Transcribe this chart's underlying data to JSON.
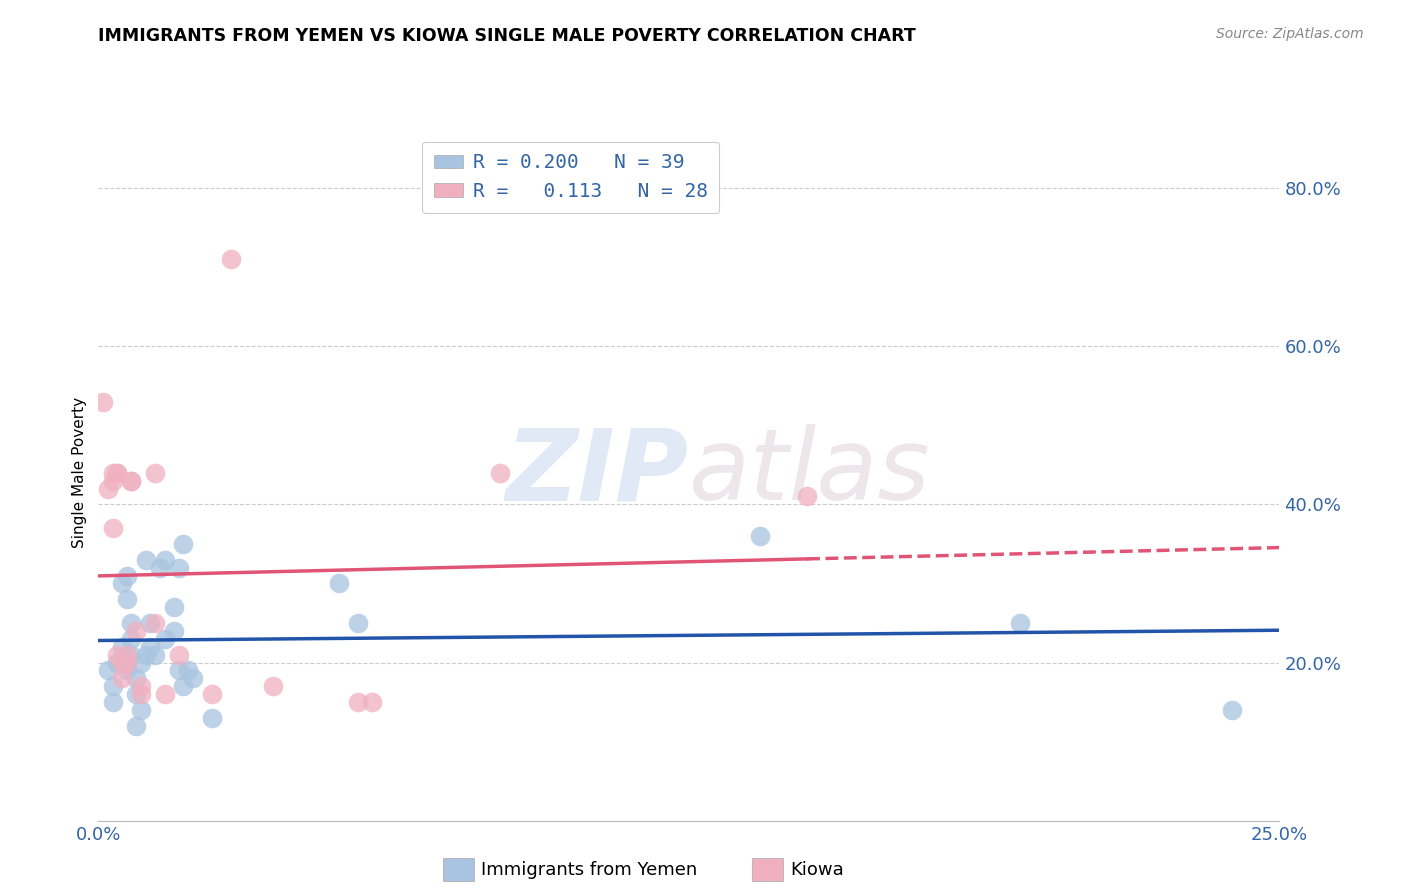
{
  "title": "IMMIGRANTS FROM YEMEN VS KIOWA SINGLE MALE POVERTY CORRELATION CHART",
  "source": "Source: ZipAtlas.com",
  "xlabel_blue": "Immigrants from Yemen",
  "xlabel_pink": "Kiowa",
  "ylabel": "Single Male Poverty",
  "xlim": [
    0.0,
    0.25
  ],
  "ylim": [
    0.0,
    0.88
  ],
  "xticks": [
    0.0,
    0.05,
    0.1,
    0.15,
    0.2,
    0.25
  ],
  "xtick_labels": [
    "0.0%",
    "",
    "",
    "",
    "",
    "25.0%"
  ],
  "yticks_right": [
    0.2,
    0.4,
    0.6,
    0.8
  ],
  "ytick_labels_right": [
    "20.0%",
    "40.0%",
    "60.0%",
    "80.0%"
  ],
  "legend_blue_r": "0.200",
  "legend_blue_n": "39",
  "legend_pink_r": "0.113",
  "legend_pink_n": "28",
  "blue_color": "#a8c4e0",
  "pink_color": "#f0b0c0",
  "blue_line_color": "#2255aa",
  "pink_line_color": "#e05575",
  "blue_scatter": [
    [
      0.002,
      0.19
    ],
    [
      0.003,
      0.17
    ],
    [
      0.003,
      0.15
    ],
    [
      0.004,
      0.2
    ],
    [
      0.005,
      0.22
    ],
    [
      0.005,
      0.3
    ],
    [
      0.006,
      0.31
    ],
    [
      0.006,
      0.28
    ],
    [
      0.006,
      0.19
    ],
    [
      0.007,
      0.23
    ],
    [
      0.007,
      0.25
    ],
    [
      0.007,
      0.21
    ],
    [
      0.008,
      0.18
    ],
    [
      0.008,
      0.16
    ],
    [
      0.008,
      0.12
    ],
    [
      0.009,
      0.14
    ],
    [
      0.009,
      0.2
    ],
    [
      0.01,
      0.33
    ],
    [
      0.01,
      0.21
    ],
    [
      0.011,
      0.22
    ],
    [
      0.011,
      0.25
    ],
    [
      0.012,
      0.21
    ],
    [
      0.013,
      0.32
    ],
    [
      0.014,
      0.33
    ],
    [
      0.014,
      0.23
    ],
    [
      0.016,
      0.27
    ],
    [
      0.016,
      0.24
    ],
    [
      0.017,
      0.32
    ],
    [
      0.017,
      0.19
    ],
    [
      0.018,
      0.17
    ],
    [
      0.018,
      0.35
    ],
    [
      0.019,
      0.19
    ],
    [
      0.02,
      0.18
    ],
    [
      0.024,
      0.13
    ],
    [
      0.051,
      0.3
    ],
    [
      0.055,
      0.25
    ],
    [
      0.14,
      0.36
    ],
    [
      0.195,
      0.25
    ],
    [
      0.24,
      0.14
    ]
  ],
  "pink_scatter": [
    [
      0.001,
      0.53
    ],
    [
      0.002,
      0.42
    ],
    [
      0.003,
      0.44
    ],
    [
      0.003,
      0.43
    ],
    [
      0.003,
      0.37
    ],
    [
      0.004,
      0.44
    ],
    [
      0.004,
      0.44
    ],
    [
      0.004,
      0.21
    ],
    [
      0.005,
      0.2
    ],
    [
      0.005,
      0.18
    ],
    [
      0.006,
      0.2
    ],
    [
      0.006,
      0.21
    ],
    [
      0.007,
      0.43
    ],
    [
      0.007,
      0.43
    ],
    [
      0.008,
      0.24
    ],
    [
      0.009,
      0.17
    ],
    [
      0.009,
      0.16
    ],
    [
      0.012,
      0.44
    ],
    [
      0.012,
      0.25
    ],
    [
      0.014,
      0.16
    ],
    [
      0.017,
      0.21
    ],
    [
      0.024,
      0.16
    ],
    [
      0.037,
      0.17
    ],
    [
      0.055,
      0.15
    ],
    [
      0.058,
      0.15
    ],
    [
      0.085,
      0.44
    ],
    [
      0.15,
      0.41
    ],
    [
      0.028,
      0.71
    ]
  ],
  "watermark_zip": "ZIP",
  "watermark_atlas": "atlas",
  "background_color": "#ffffff",
  "grid_color": "#cccccc"
}
